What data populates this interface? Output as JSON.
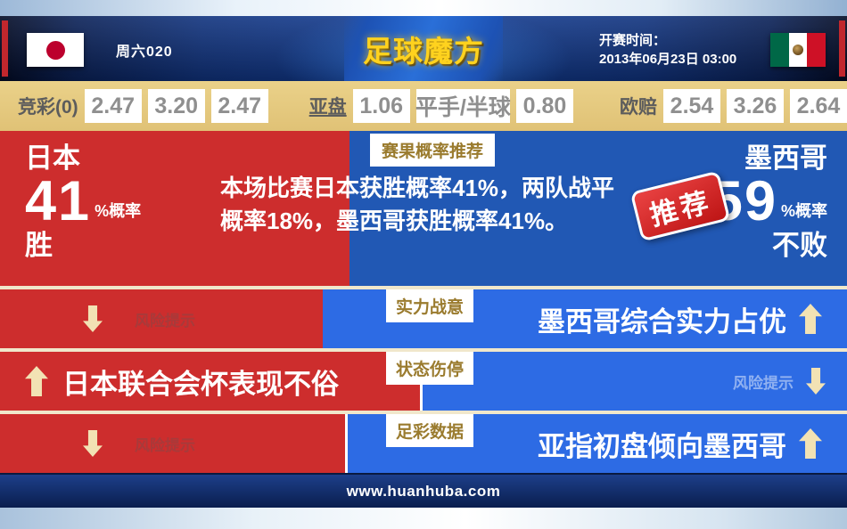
{
  "header": {
    "match_code": "周六020",
    "logo": "足球魔方",
    "kickoff_label": "开赛时间：",
    "kickoff_time": "2013年06月23日 03:00"
  },
  "odds_bar": {
    "jingcai": {
      "label": "竞彩(0)",
      "values": [
        "2.47",
        "3.20",
        "2.47"
      ]
    },
    "yapan": {
      "label": "亚盘",
      "values": [
        "1.06",
        "平手/半球",
        "0.80"
      ]
    },
    "oupei": {
      "label": "欧赔",
      "values": [
        "2.54",
        "3.26",
        "2.64"
      ]
    }
  },
  "main": {
    "tag": "赛果概率推荐",
    "home": {
      "name": "日本",
      "percent": "41",
      "percent_suffix": "%概率",
      "outcome": "胜"
    },
    "away": {
      "name": "墨西哥",
      "percent": "59",
      "percent_suffix": "%概率",
      "outcome": "不败"
    },
    "stamp": "推荐",
    "summary": "本场比赛日本获胜概率41%，两队战平概率18%，墨西哥获胜概率41%。"
  },
  "rows": [
    {
      "tag": "实力战意",
      "left": {
        "style": "risk",
        "direction": "down",
        "text": "风险提示"
      },
      "right": {
        "style": "headline",
        "direction": "up",
        "text": "墨西哥综合实力占优"
      }
    },
    {
      "tag": "状态伤停",
      "left": {
        "style": "headline",
        "direction": "up",
        "text": "日本联合会杯表现不俗"
      },
      "right": {
        "style": "risk",
        "direction": "down",
        "text": "风险提示"
      }
    },
    {
      "tag": "足彩数据",
      "left": {
        "style": "risk",
        "direction": "down",
        "text": "风险提示"
      },
      "right": {
        "style": "headline",
        "direction": "up",
        "text": "亚指初盘倾向墨西哥"
      }
    }
  ],
  "footer": {
    "url": "www.huanhuba.com"
  },
  "colors": {
    "accent_red": "#cd2d2d",
    "accent_blue_dark": "#2158b4",
    "accent_blue_bright": "#2d6be4",
    "odds_bar_tan": "#e3c77e",
    "tag_gold_text": "#9a7b2e",
    "arrow_cream": "#f2e2b4",
    "logo_gold": "#ffd21e"
  }
}
